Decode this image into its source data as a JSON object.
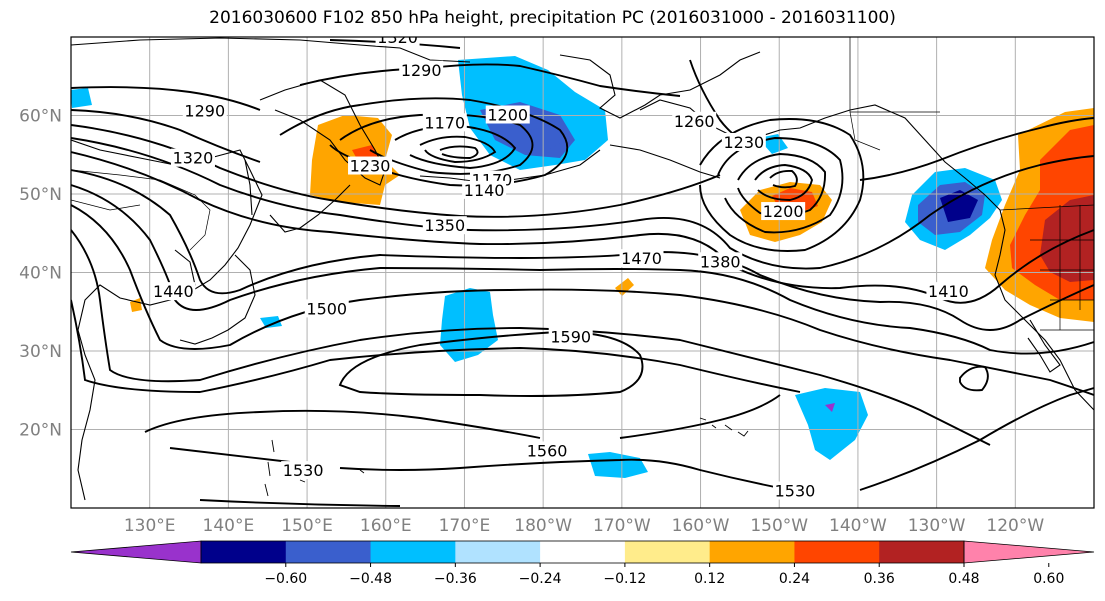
{
  "title": "2016030600 F102 850 hPa height, precipitation PC (2016031000 - 2016031100)",
  "map": {
    "projection": "PlateCarree",
    "lon_range": [
      120,
      250
    ],
    "lat_range": [
      10,
      70
    ],
    "lon_ticks": [
      {
        "lon": 130,
        "label": "130°E"
      },
      {
        "lon": 140,
        "label": "140°E"
      },
      {
        "lon": 150,
        "label": "150°E"
      },
      {
        "lon": 160,
        "label": "160°E"
      },
      {
        "lon": 170,
        "label": "170°E"
      },
      {
        "lon": 180,
        "label": "180°W"
      },
      {
        "lon": 190,
        "label": "170°W"
      },
      {
        "lon": 200,
        "label": "160°W"
      },
      {
        "lon": 210,
        "label": "150°W"
      },
      {
        "lon": 220,
        "label": "140°W"
      },
      {
        "lon": 230,
        "label": "130°W"
      },
      {
        "lon": 240,
        "label": "120°W"
      }
    ],
    "lat_ticks": [
      {
        "lat": 20,
        "label": "20°N"
      },
      {
        "lat": 30,
        "label": "30°N"
      },
      {
        "lat": 40,
        "label": "40°N"
      },
      {
        "lat": 50,
        "label": "50°N"
      },
      {
        "lat": 60,
        "label": "60°N"
      }
    ],
    "grid": true,
    "tick_label_color": "#808080"
  },
  "contour_labels": [
    {
      "text": "1320",
      "lon": 161.5,
      "lat": 69.9
    },
    {
      "text": "1290",
      "lon": 164.5,
      "lat": 65.7
    },
    {
      "text": "1290",
      "lon": 137,
      "lat": 60.5
    },
    {
      "text": "1320",
      "lon": 135.5,
      "lat": 54.5
    },
    {
      "text": "1260",
      "lon": 199.2,
      "lat": 59.2
    },
    {
      "text": "1170",
      "lon": 167.5,
      "lat": 59
    },
    {
      "text": "1200",
      "lon": 175.5,
      "lat": 60
    },
    {
      "text": "1230",
      "lon": 158,
      "lat": 53.5
    },
    {
      "text": "1170",
      "lon": 173.5,
      "lat": 51.7
    },
    {
      "text": "1140",
      "lon": 172.5,
      "lat": 50.4
    },
    {
      "text": "1230",
      "lon": 205.5,
      "lat": 56.5
    },
    {
      "text": "1200",
      "lon": 210.5,
      "lat": 47.7
    },
    {
      "text": "1350",
      "lon": 167.5,
      "lat": 45.9
    },
    {
      "text": "1470",
      "lon": 192.5,
      "lat": 41.7
    },
    {
      "text": "1380",
      "lon": 202.5,
      "lat": 41.3
    },
    {
      "text": "1410",
      "lon": 231.5,
      "lat": 37.5
    },
    {
      "text": "1440",
      "lon": 133,
      "lat": 37.5
    },
    {
      "text": "1500",
      "lon": 152.5,
      "lat": 35.3
    },
    {
      "text": "1590",
      "lon": 183.5,
      "lat": 31.7
    },
    {
      "text": "1560",
      "lon": 180.5,
      "lat": 17.2
    },
    {
      "text": "1530",
      "lon": 149.5,
      "lat": 14.7
    },
    {
      "text": "1530",
      "lon": 212,
      "lat": 12.1
    }
  ],
  "colorbar": {
    "colors": [
      "#9932cc",
      "#00008b",
      "#3a5fcd",
      "#00bfff",
      "#b0e2ff",
      "#ffffff",
      "#ffec8b",
      "#ffa500",
      "#ff4500",
      "#b22222",
      "#ff82ab"
    ],
    "tick_labels": [
      "−0.60",
      "−0.48",
      "−0.36",
      "−0.24",
      "−0.12",
      "0.12",
      "0.24",
      "0.36",
      "0.48",
      "0.60"
    ],
    "extend": "both"
  },
  "colors": {
    "contour": "#000000",
    "coastline": "#000000",
    "grid": "#b0b0b0",
    "positive_shading": [
      "#ffa500",
      "#ff4500",
      "#b22222"
    ],
    "negative_shading": [
      "#00bfff",
      "#3a5fcd",
      "#00008b"
    ]
  }
}
